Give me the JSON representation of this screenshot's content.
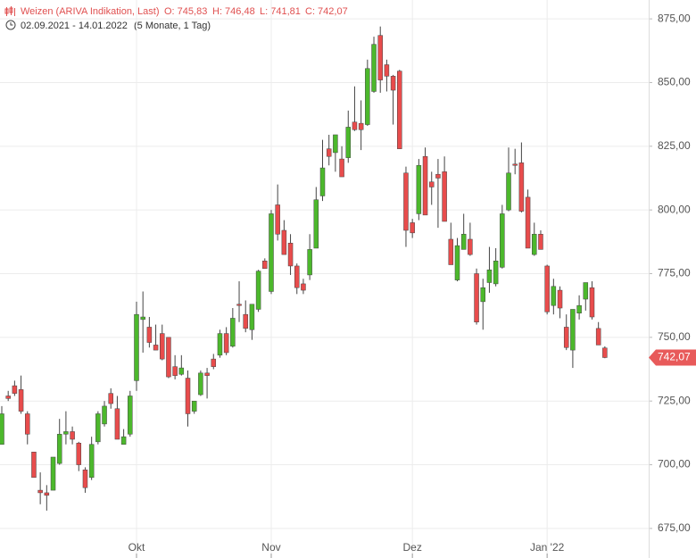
{
  "header": {
    "title": "Weizen (ARIVA Indikation, Last)",
    "open": "O: 745,83",
    "high": "H: 746,48",
    "low": "L: 741,81",
    "close": "C: 742,07",
    "range": "02.09.2021 - 14.01.2022",
    "period": "(5 Monate, 1 Tag)"
  },
  "chart_data": {
    "type": "candlestick",
    "categories": [
      null,
      null,
      null,
      null,
      null,
      null,
      null,
      null,
      null,
      null,
      null,
      null,
      null,
      null,
      null,
      null,
      null,
      null,
      null,
      null,
      null,
      "Okt",
      null,
      null,
      null,
      null,
      null,
      null,
      null,
      null,
      null,
      null,
      null,
      null,
      null,
      null,
      null,
      null,
      null,
      null,
      null,
      null,
      "Nov",
      null,
      null,
      null,
      null,
      null,
      null,
      null,
      null,
      null,
      null,
      null,
      null,
      null,
      null,
      null,
      null,
      null,
      null,
      null,
      null,
      null,
      "Dez",
      null,
      null,
      null,
      null,
      null,
      null,
      null,
      null,
      null,
      null,
      null,
      null,
      null,
      null,
      null,
      null,
      null,
      null,
      null,
      null,
      "Jan '22",
      null,
      null,
      null,
      null,
      null,
      null,
      null,
      null,
      null
    ],
    "open": [
      708,
      727,
      731,
      729.5,
      720,
      705,
      690,
      689,
      690,
      700.5,
      712,
      713,
      708.5,
      698,
      695,
      709,
      716,
      728,
      722,
      708,
      712,
      733,
      757,
      754,
      747,
      751.5,
      750,
      738.5,
      735.5,
      734,
      721,
      727.5,
      736,
      741.5,
      743,
      751.5,
      746.5,
      763,
      759,
      753,
      761,
      780,
      768,
      802,
      792,
      787,
      778,
      771,
      774.5,
      785,
      805.5,
      824,
      822.5,
      820,
      820.5,
      834.5,
      834,
      833.5,
      846.5,
      868.5,
      857,
      852.5,
      854.5,
      814.5,
      795,
      798.5,
      821,
      811,
      814,
      815,
      788.5,
      772.5,
      784.5,
      788.5,
      775,
      764,
      771.5,
      771,
      777.5,
      800,
      818,
      818.5,
      805,
      782.5,
      790.5,
      778,
      762.5,
      768.5,
      754,
      745,
      759.5,
      765,
      769.5,
      753.5,
      745.83
    ],
    "high": [
      723,
      729,
      733,
      735,
      721,
      705,
      697,
      692,
      703,
      718,
      721,
      715,
      709,
      699,
      711,
      721,
      725,
      730,
      727,
      714,
      729,
      764,
      768,
      758,
      755,
      755,
      750,
      743,
      743,
      737,
      725,
      737,
      738,
      743.5,
      753,
      754,
      761.5,
      772,
      764.5,
      763,
      776.5,
      781,
      800,
      810,
      796,
      790.5,
      779,
      773,
      790.5,
      809,
      827.5,
      829.5,
      829.5,
      825,
      839,
      848.5,
      843,
      859,
      868,
      872,
      859,
      853,
      855,
      817,
      796.5,
      820,
      824.5,
      815,
      820,
      821,
      795,
      789,
      798.5,
      795,
      777,
      773,
      785.5,
      785,
      802,
      824.5,
      824,
      826.5,
      808,
      795,
      792,
      778.5,
      773,
      770,
      759,
      761,
      766.5,
      771.5,
      772,
      756,
      746.48
    ],
    "low": [
      708,
      725,
      727,
      720,
      708,
      695,
      684.5,
      682,
      690,
      700,
      708,
      708,
      697.5,
      689,
      694,
      708,
      715,
      722,
      710,
      708,
      711,
      729,
      744,
      746,
      745,
      741,
      734,
      733.5,
      735,
      715,
      720,
      727,
      726,
      737.5,
      742,
      743,
      746,
      756,
      752,
      749,
      760,
      777,
      767,
      788,
      782.5,
      774.5,
      767,
      767,
      772.5,
      785,
      803.5,
      817.5,
      815,
      813,
      818.5,
      831,
      823.5,
      833,
      846,
      846,
      846.5,
      833.5,
      824,
      785.5,
      789,
      796,
      798,
      802,
      793,
      795.5,
      778.5,
      772,
      784.5,
      782,
      755,
      753,
      767.5,
      770,
      777,
      799.5,
      814,
      799,
      785,
      782,
      784.5,
      759,
      759,
      757.5,
      745,
      738,
      757,
      760.5,
      757,
      747,
      741.81
    ],
    "close": [
      720,
      726,
      728,
      721,
      712,
      695,
      689,
      688,
      703,
      712,
      713,
      710,
      700,
      691,
      708,
      720,
      723,
      724,
      710,
      711,
      727,
      759,
      758,
      748,
      745,
      741.5,
      734.5,
      735,
      738,
      720,
      725,
      736,
      735,
      738.5,
      751.5,
      744,
      757.5,
      762.5,
      753.5,
      763,
      776,
      777,
      798.5,
      790.5,
      782.5,
      778,
      769.5,
      768.5,
      784.5,
      804,
      816.5,
      821,
      829.5,
      813,
      832.5,
      831.5,
      831.5,
      855.5,
      865,
      851,
      852.5,
      847,
      824,
      792,
      791,
      817.5,
      798,
      809,
      812.5,
      795.5,
      778.5,
      786,
      790.5,
      782.5,
      756,
      769.5,
      776.5,
      780,
      798.5,
      814.5,
      817.5,
      799.5,
      785,
      790.5,
      784.5,
      760,
      770,
      761.5,
      746,
      761,
      762.5,
      771.5,
      758,
      747,
      742.07
    ],
    "up_color": "#4cb82c",
    "down_color": "#e84c4c",
    "ylim": [
      663.4,
      882.4
    ],
    "yticks": [
      {
        "value": 675,
        "label": "675,00"
      },
      {
        "value": 700,
        "label": "700,00"
      },
      {
        "value": 725,
        "label": "725,00"
      },
      {
        "value": 750,
        "label": "750,00"
      },
      {
        "value": 775,
        "label": "775,00"
      },
      {
        "value": 800,
        "label": "800,00"
      },
      {
        "value": 825,
        "label": "825,00"
      },
      {
        "value": 850,
        "label": "850,00"
      },
      {
        "value": 875,
        "label": "875,00"
      }
    ],
    "last_price": {
      "value": 742.07,
      "label": "742,07"
    },
    "grid": true
  }
}
